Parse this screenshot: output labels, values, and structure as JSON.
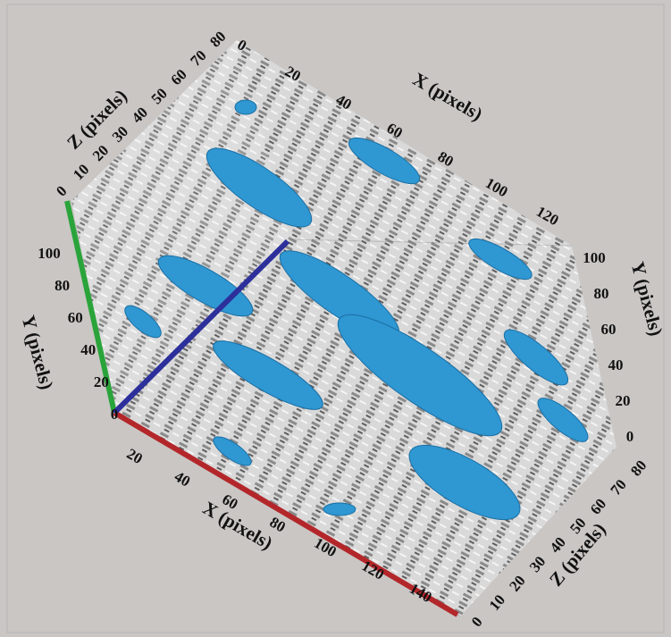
{
  "axes": {
    "front_x": {
      "label": "X (pixels)",
      "ticks": [
        20,
        40,
        60,
        80,
        100,
        120,
        140
      ]
    },
    "left_y": {
      "label": "Y (pixels)",
      "ticks": [
        0,
        20,
        40,
        60,
        80,
        100
      ]
    },
    "top_z": {
      "label": "Z (pixels)",
      "ticks": [
        0,
        10,
        20,
        30,
        40,
        50,
        60,
        70,
        80
      ]
    },
    "top_x": {
      "label": "X (pixels)",
      "ticks": [
        0,
        20,
        40,
        60,
        80,
        100,
        120
      ]
    },
    "right_y": {
      "label": "Y (pixels)",
      "ticks": [
        0,
        20,
        40,
        60,
        80,
        100
      ]
    },
    "bottom_z": {
      "label": "Z (pixels)",
      "ticks": [
        0,
        10,
        20,
        30,
        40,
        50,
        60,
        70,
        80
      ]
    }
  }
}
